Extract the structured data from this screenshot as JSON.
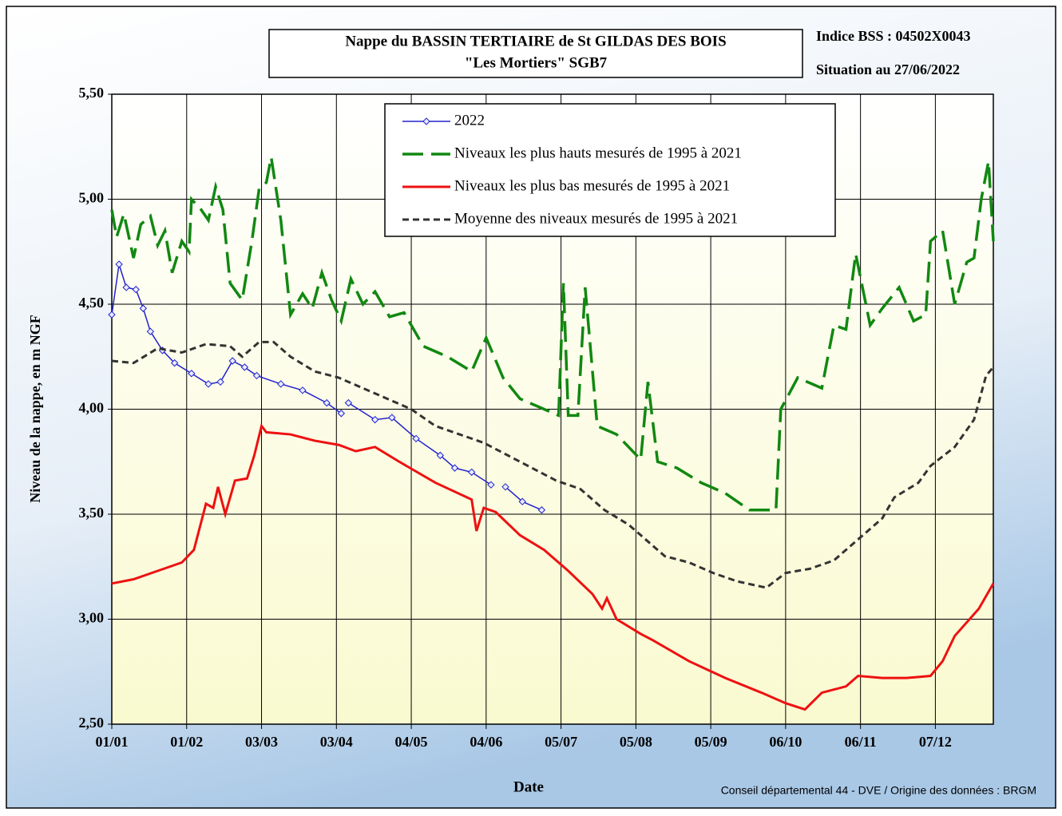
{
  "chart_data": {
    "type": "line",
    "title": [
      "Nappe du BASSIN TERTIAIRE de St GILDAS DES BOIS",
      "\"Les Mortiers\" SGB7"
    ],
    "annotations": [
      "Indice BSS : 04502X0043",
      "Situation au 27/06/2022"
    ],
    "source": "Conseil départemental  44 - DVE  /   Origine des données : BRGM",
    "xlabel": "Date",
    "ylabel": "Niveau de la nappe, en m NGF",
    "xlim": [
      1,
      366
    ],
    "xticks": [
      {
        "value": 1,
        "label": "01/01"
      },
      {
        "value": 32,
        "label": "01/02"
      },
      {
        "value": 63,
        "label": "03/03"
      },
      {
        "value": 94,
        "label": "03/04"
      },
      {
        "value": 125,
        "label": "04/05"
      },
      {
        "value": 156,
        "label": "04/06"
      },
      {
        "value": 187,
        "label": "05/07"
      },
      {
        "value": 218,
        "label": "05/08"
      },
      {
        "value": 249,
        "label": "05/09"
      },
      {
        "value": 280,
        "label": "06/10"
      },
      {
        "value": 311,
        "label": "06/11"
      },
      {
        "value": 342,
        "label": "07/12"
      }
    ],
    "ylim": [
      2.5,
      5.5
    ],
    "yticks": [
      {
        "value": 2.5,
        "label": "2,50"
      },
      {
        "value": 3,
        "label": "3,00"
      },
      {
        "value": 3.5,
        "label": "3,50"
      },
      {
        "value": 4,
        "label": "4,00"
      },
      {
        "value": 4.5,
        "label": "4,50"
      },
      {
        "value": 5,
        "label": "5,00"
      },
      {
        "value": 5.5,
        "label": "5,50"
      }
    ],
    "grid": true,
    "legend": "top",
    "series": [
      {
        "name": "2022",
        "color": "#2222cc",
        "line_style": "solid",
        "marker": "diamond",
        "x": [
          1,
          4,
          7,
          11,
          14,
          17,
          22,
          27,
          34,
          41,
          46,
          51,
          56,
          61,
          71,
          80,
          90,
          96,
          98,
          99,
          110,
          117,
          127,
          137,
          143,
          150,
          158,
          161,
          164,
          171,
          179
        ],
        "values": [
          4.45,
          4.69,
          4.58,
          4.57,
          4.48,
          4.37,
          4.28,
          4.22,
          4.17,
          4.12,
          4.13,
          4.23,
          4.2,
          4.16,
          4.12,
          4.09,
          4.03,
          3.98,
          null,
          4.03,
          3.95,
          3.96,
          3.86,
          3.78,
          3.72,
          3.7,
          3.64,
          null,
          3.63,
          3.56,
          3.52
        ]
      },
      {
        "name": "Niveaux les plus hauts mesurés de 1995 à 2021",
        "color": "#118811",
        "line_style": "longdash",
        "x": [
          1,
          3,
          6,
          10,
          13,
          17,
          20,
          23,
          26,
          30,
          33,
          34,
          38,
          41,
          44,
          47,
          50,
          55,
          59,
          62,
          65,
          67,
          71,
          75,
          80,
          84,
          88,
          92,
          96,
          100,
          105,
          110,
          116,
          122,
          130,
          140,
          150,
          156,
          163,
          170,
          180,
          186,
          188,
          190,
          194,
          197,
          202,
          210,
          220,
          223,
          227,
          235,
          245,
          255,
          265,
          276,
          278,
          285,
          295,
          300,
          305,
          309,
          315,
          320,
          327,
          333,
          338,
          340,
          345,
          350,
          355,
          358,
          361,
          364,
          366
        ],
        "values": [
          4.95,
          4.82,
          4.93,
          4.72,
          4.88,
          4.92,
          4.78,
          4.85,
          4.65,
          4.8,
          4.75,
          5.0,
          4.95,
          4.9,
          5.06,
          4.95,
          4.6,
          4.52,
          4.8,
          5.05,
          5.08,
          5.2,
          4.9,
          4.45,
          4.55,
          4.48,
          4.65,
          4.52,
          4.42,
          4.62,
          4.5,
          4.56,
          4.44,
          4.46,
          4.3,
          4.25,
          4.18,
          4.34,
          4.15,
          4.05,
          4.0,
          3.97,
          4.6,
          3.97,
          3.97,
          4.58,
          3.92,
          3.88,
          3.76,
          4.13,
          3.75,
          3.72,
          3.65,
          3.6,
          3.52,
          3.52,
          4.0,
          4.15,
          4.1,
          4.4,
          4.38,
          4.74,
          4.4,
          4.48,
          4.58,
          4.42,
          4.45,
          4.8,
          4.85,
          4.5,
          4.7,
          4.72,
          5.0,
          5.18,
          4.8
        ]
      },
      {
        "name": "Niveaux les plus bas mesurés de 1995 à 2021",
        "color": "#ee1111",
        "line_style": "solid",
        "x": [
          1,
          10,
          20,
          30,
          35,
          40,
          43,
          45,
          48,
          52,
          57,
          60,
          63,
          65,
          75,
          85,
          95,
          102,
          110,
          120,
          135,
          150,
          152,
          155,
          160,
          170,
          180,
          190,
          200,
          204,
          206,
          210,
          220,
          225,
          240,
          255,
          270,
          280,
          288,
          295,
          305,
          310,
          320,
          330,
          340,
          345,
          350,
          360,
          366
        ],
        "values": [
          3.17,
          3.19,
          3.23,
          3.27,
          3.33,
          3.55,
          3.53,
          3.63,
          3.5,
          3.66,
          3.67,
          3.78,
          3.92,
          3.89,
          3.88,
          3.85,
          3.83,
          3.8,
          3.82,
          3.75,
          3.65,
          3.57,
          3.42,
          3.53,
          3.51,
          3.4,
          3.33,
          3.23,
          3.12,
          3.05,
          3.1,
          3.0,
          2.93,
          2.9,
          2.8,
          2.72,
          2.65,
          2.6,
          2.57,
          2.65,
          2.68,
          2.73,
          2.72,
          2.72,
          2.73,
          2.8,
          2.92,
          3.05,
          3.17
        ]
      },
      {
        "name": "Moyenne des niveaux mesurés de 1995 à 2021",
        "color": "#333333",
        "line_style": "shortdash",
        "x": [
          1,
          10,
          20,
          30,
          40,
          50,
          55,
          62,
          68,
          75,
          85,
          95,
          105,
          115,
          125,
          135,
          145,
          155,
          165,
          175,
          185,
          195,
          205,
          215,
          220,
          230,
          240,
          250,
          260,
          272,
          280,
          290,
          300,
          310,
          320,
          325,
          335,
          340,
          350,
          358,
          363,
          366
        ],
        "values": [
          4.23,
          4.22,
          4.29,
          4.27,
          4.31,
          4.3,
          4.25,
          4.32,
          4.32,
          4.25,
          4.18,
          4.15,
          4.1,
          4.05,
          4.0,
          3.92,
          3.88,
          3.84,
          3.78,
          3.72,
          3.66,
          3.62,
          3.52,
          3.45,
          3.4,
          3.3,
          3.27,
          3.22,
          3.18,
          3.15,
          3.22,
          3.24,
          3.28,
          3.38,
          3.48,
          3.58,
          3.65,
          3.73,
          3.82,
          3.95,
          4.16,
          4.2
        ]
      }
    ]
  }
}
